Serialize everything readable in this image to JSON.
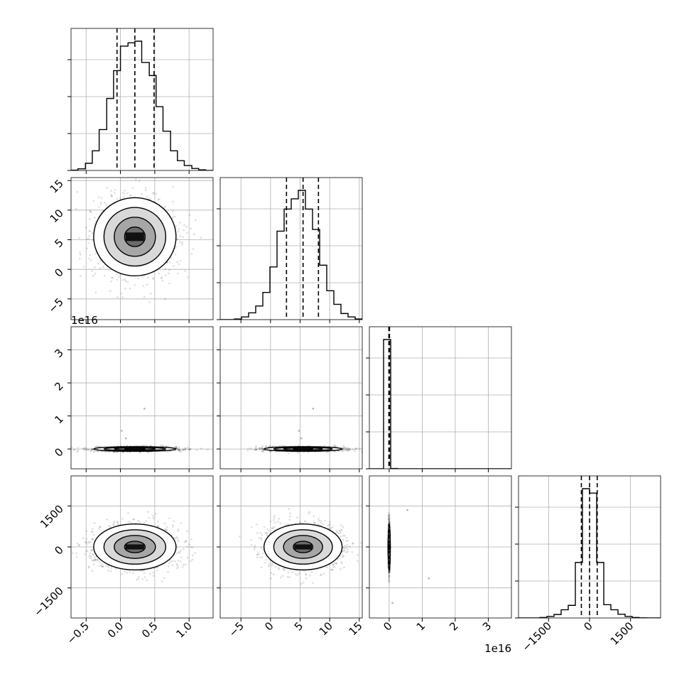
{
  "chart_data": {
    "type": "corner",
    "grid": true,
    "params": [
      {
        "range": [
          -0.72,
          1.35
        ],
        "ticks": [
          -0.5,
          0.0,
          0.5,
          1.0
        ],
        "tick_labels": [
          "−0.5",
          "0.0",
          "0.5",
          "1.0"
        ],
        "quantiles": [
          -0.05,
          0.21,
          0.49
        ],
        "offset": ""
      },
      {
        "range": [
          -8.5,
          15.5
        ],
        "ticks": [
          -5,
          0,
          5,
          10,
          15
        ],
        "tick_labels": [
          "−5",
          "0",
          "5",
          "10",
          "15"
        ],
        "quantiles": [
          2.7,
          5.5,
          8.1
        ],
        "offset": ""
      },
      {
        "range": [
          -0.6,
          3.7
        ],
        "ticks": [
          0,
          1,
          2,
          3
        ],
        "tick_labels": [
          "0",
          "1",
          "2",
          "3"
        ],
        "quantiles": [
          -0.01,
          0.0,
          0.01
        ],
        "offset": "1e16"
      },
      {
        "range": [
          -2600,
          2600
        ],
        "ticks": [
          -1500,
          0,
          1500
        ],
        "tick_labels": [
          "−1500",
          "0",
          "1500"
        ],
        "quantiles": [
          -300,
          0,
          280
        ],
        "offset": ""
      }
    ],
    "histograms": [
      {
        "bins": [
          -0.72,
          -0.62,
          -0.51,
          -0.41,
          -0.31,
          -0.2,
          -0.1,
          0.0,
          0.11,
          0.21,
          0.31,
          0.42,
          0.52,
          0.62,
          0.73,
          0.83,
          0.93,
          1.04,
          1.14,
          1.24,
          1.35
        ],
        "counts": [
          1,
          5,
          22,
          60,
          125,
          220,
          305,
          380,
          390,
          395,
          330,
          290,
          195,
          120,
          60,
          30,
          15,
          6,
          2,
          0
        ]
      },
      {
        "bins": [
          -8.5,
          -7.3,
          -6.1,
          -4.9,
          -3.7,
          -2.5,
          -1.3,
          -0.1,
          1.1,
          2.3,
          3.5,
          4.7,
          5.9,
          7.1,
          8.3,
          9.5,
          10.7,
          11.9,
          13.1,
          14.3,
          15.5
        ],
        "counts": [
          0,
          0,
          2,
          8,
          20,
          40,
          80,
          155,
          260,
          325,
          355,
          380,
          325,
          265,
          160,
          85,
          45,
          18,
          8,
          2
        ]
      },
      {
        "bins": [
          -0.6,
          -0.385,
          -0.17,
          0.045,
          0.26,
          0.475,
          0.69,
          0.905,
          1.12,
          1.335,
          1.55,
          1.765,
          1.98,
          2.195,
          2.41,
          2.625,
          2.84,
          3.055,
          3.27,
          3.485,
          3.7
        ],
        "counts": [
          0,
          0,
          9980,
          20,
          0,
          0,
          0,
          0,
          0,
          0,
          0,
          0,
          0,
          0,
          0,
          0,
          0,
          0,
          0,
          0
        ]
      },
      {
        "bins": [
          -2600,
          -2340,
          -2080,
          -1820,
          -1560,
          -1300,
          -1040,
          -780,
          -520,
          -260,
          0,
          260,
          520,
          780,
          1040,
          1300,
          1560,
          1820,
          2080,
          2340,
          2600
        ],
        "counts": [
          0,
          0,
          1,
          8,
          25,
          55,
          130,
          200,
          880,
          2050,
          1980,
          880,
          210,
          130,
          60,
          25,
          8,
          2,
          0,
          0
        ]
      }
    ],
    "pairs": [
      {
        "x": 0,
        "y": 1,
        "mean": [
          0.21,
          5.5
        ],
        "sd": [
          0.3,
          3.3
        ],
        "tilt": 0
      },
      {
        "x": 0,
        "y": 2,
        "mean": [
          0.21,
          0.0
        ],
        "sd": [
          0.3,
          0.035
        ],
        "tilt": 0,
        "stray": [
          [
            0.02,
            0.55
          ],
          [
            0.35,
            1.22
          ],
          [
            0.08,
            0.32
          ]
        ]
      },
      {
        "x": 1,
        "y": 2,
        "mean": [
          5.5,
          0.0
        ],
        "sd": [
          3.3,
          0.035
        ],
        "tilt": 0,
        "stray": [
          [
            4.8,
            0.55
          ],
          [
            7.2,
            1.22
          ],
          [
            5.2,
            0.32
          ]
        ]
      },
      {
        "x": 0,
        "y": 3,
        "mean": [
          0.21,
          0.0
        ],
        "sd": [
          0.3,
          420
        ],
        "tilt": 0
      },
      {
        "x": 1,
        "y": 3,
        "mean": [
          5.5,
          0.0
        ],
        "sd": [
          3.3,
          420
        ],
        "tilt": 0
      },
      {
        "x": 2,
        "y": 3,
        "mean": [
          0.0,
          0.0
        ],
        "sd": [
          0.01,
          420
        ],
        "tilt": 0,
        "stray": [
          [
            1.2,
            -1150
          ],
          [
            0.55,
            1350
          ],
          [
            0.1,
            -2050
          ]
        ]
      }
    ],
    "contour_levels": [
      0.5,
      1.0,
      1.5,
      2.0
    ]
  }
}
